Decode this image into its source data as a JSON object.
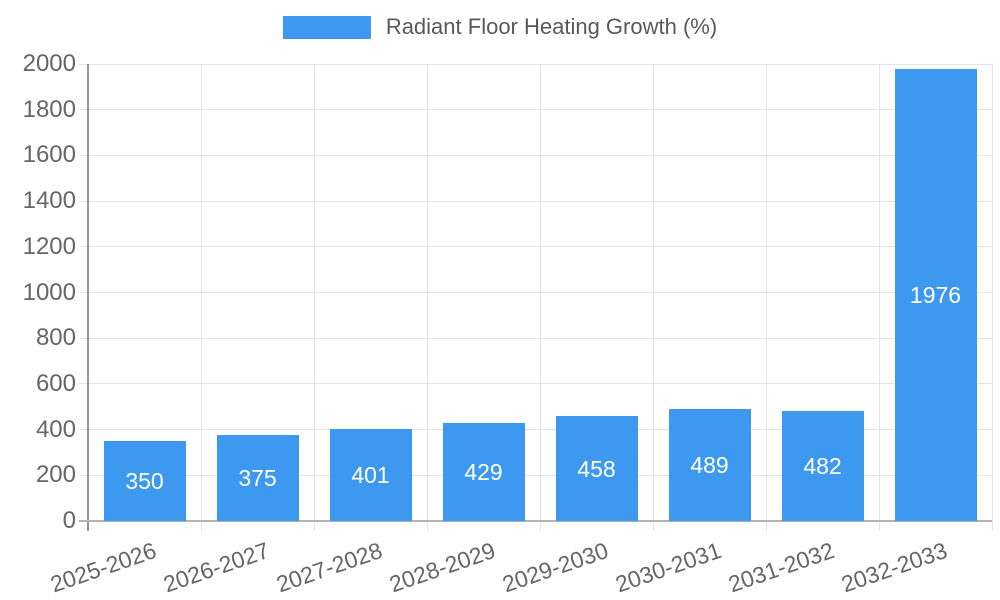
{
  "legend": {
    "label": "Radiant Floor Heating Growth (%)",
    "swatch_color": "#3d99f0"
  },
  "chart_data": {
    "type": "bar",
    "title": "Radiant Floor Heating Growth (%)",
    "categories": [
      "2025-2026",
      "2026-2027",
      "2027-2028",
      "2028-2029",
      "2029-2030",
      "2030-2031",
      "2031-2032",
      "2032-2033"
    ],
    "values": [
      350,
      375,
      401,
      429,
      458,
      489,
      482,
      1976
    ],
    "xlabel": "",
    "ylabel": "",
    "ylim": [
      0,
      2000
    ],
    "ytick_step": 200,
    "ytick_labels": [
      "0",
      "200",
      "400",
      "600",
      "800",
      "1000",
      "1200",
      "1400",
      "1600",
      "1800",
      "2000"
    ],
    "legend_position": "top",
    "grid": true,
    "bar_color": "#3d99f0",
    "value_label_color": "#ffffff",
    "axis_text_color": "#666666",
    "gridline_color": "#e4e4e4",
    "axis_line_color_x": "#b3b3b3",
    "axis_line_color_y": "#949494"
  }
}
